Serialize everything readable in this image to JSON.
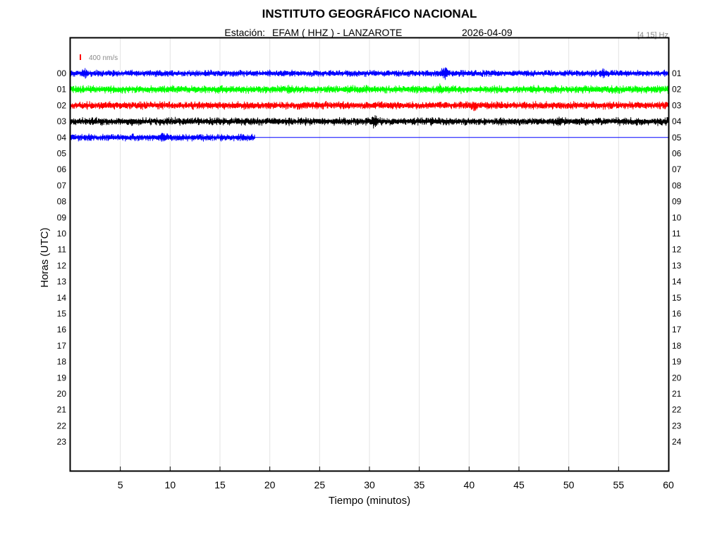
{
  "chart_data": {
    "type": "line",
    "title": "INSTITUTO GEOGRÁFICO NACIONAL",
    "subtitle": {
      "station_label": "Estación:",
      "station": "EFAM ( HHZ ) - LANZAROTE",
      "date": "2026-04-09"
    },
    "band": "[4 15] Hz",
    "scale_label": "400 nm/s",
    "xlabel": "Tiempo (minutos)",
    "ylabel": "Horas (UTC)",
    "xlim": [
      0,
      60
    ],
    "x_ticks": [
      "5",
      "10",
      "15",
      "20",
      "25",
      "30",
      "35",
      "40",
      "45",
      "50",
      "55",
      "60"
    ],
    "x_tick_values": [
      5,
      10,
      15,
      20,
      25,
      30,
      35,
      40,
      45,
      50,
      55,
      60
    ],
    "left_hour_labels": [
      "00",
      "01",
      "02",
      "03",
      "04",
      "05",
      "06",
      "07",
      "08",
      "09",
      "10",
      "11",
      "12",
      "13",
      "14",
      "15",
      "16",
      "17",
      "18",
      "19",
      "20",
      "21",
      "22",
      "23"
    ],
    "right_hour_labels": [
      "01",
      "02",
      "03",
      "04",
      "05",
      "06",
      "07",
      "08",
      "09",
      "10",
      "11",
      "12",
      "13",
      "14",
      "15",
      "16",
      "17",
      "18",
      "19",
      "20",
      "21",
      "22",
      "23",
      "24"
    ],
    "grid": true,
    "series": [
      {
        "hour": 0,
        "color": "#0000ff",
        "end_minute": 60,
        "amplitude": 0.5,
        "events": [
          {
            "minute": 1.5,
            "amp": 0.9
          },
          {
            "minute": 37.5,
            "amp": 1.1
          },
          {
            "minute": 53.5,
            "amp": 0.9
          }
        ]
      },
      {
        "hour": 1,
        "color": "#00ff00",
        "end_minute": 60,
        "amplitude": 0.6,
        "events": [
          {
            "minute": 22,
            "amp": 0.9
          },
          {
            "minute": 37,
            "amp": 0.9
          }
        ]
      },
      {
        "hour": 2,
        "color": "#ff0000",
        "end_minute": 60,
        "amplitude": 0.6,
        "events": [
          {
            "minute": 40.5,
            "amp": 0.9
          }
        ]
      },
      {
        "hour": 3,
        "color": "#000000",
        "end_minute": 60,
        "amplitude": 0.6,
        "events": [
          {
            "minute": 30.5,
            "amp": 1.1
          },
          {
            "minute": 49,
            "amp": 0.8
          }
        ]
      },
      {
        "hour": 4,
        "color": "#0000ff",
        "end_minute": 18.5,
        "amplitude": 0.55,
        "events": [
          {
            "minute": 9.3,
            "amp": 1.1
          }
        ],
        "baseline_to_minute": 60
      }
    ]
  }
}
